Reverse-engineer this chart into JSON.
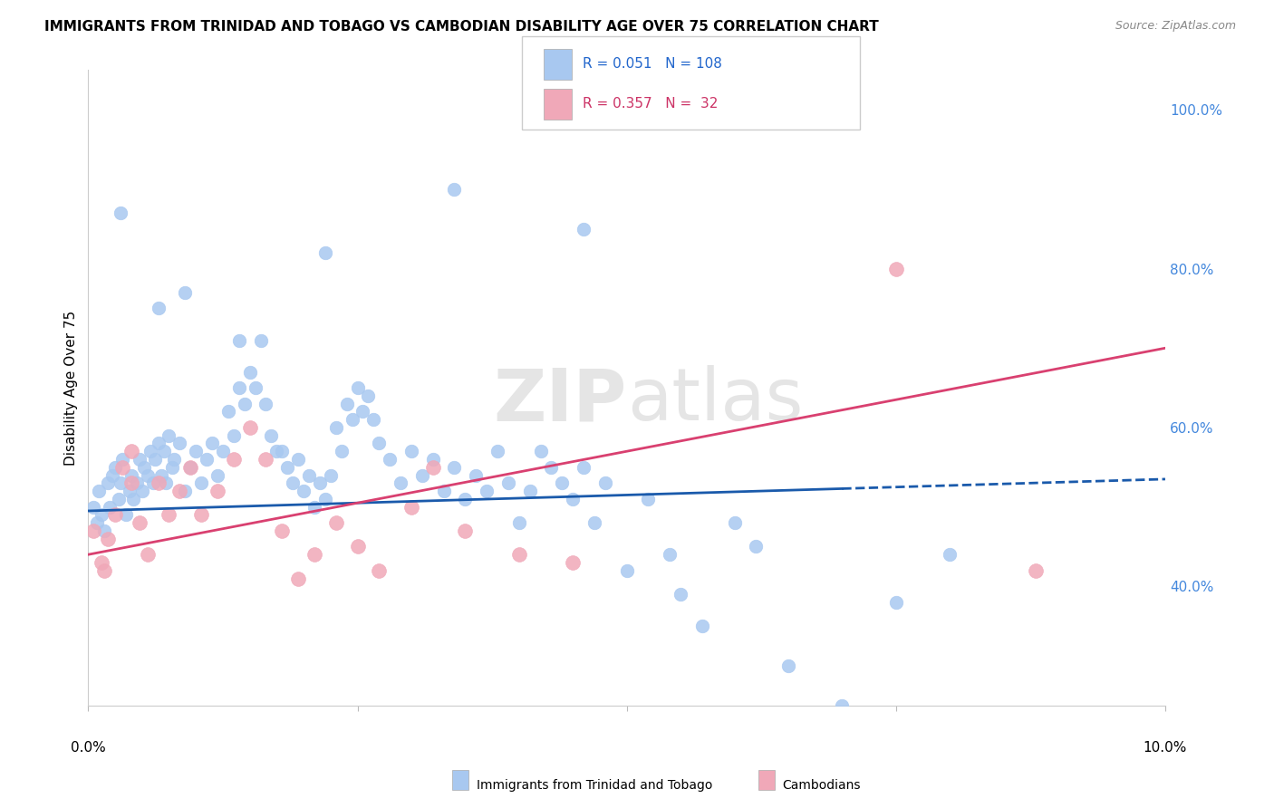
{
  "title": "IMMIGRANTS FROM TRINIDAD AND TOBAGO VS CAMBODIAN DISABILITY AGE OVER 75 CORRELATION CHART",
  "source": "Source: ZipAtlas.com",
  "ylabel": "Disability Age Over 75",
  "blue_R": "R = 0.051",
  "blue_N": "N = 108",
  "pink_R": "R = 0.357",
  "pink_N": "N =  32",
  "blue_color": "#a8c8f0",
  "pink_color": "#f0a8b8",
  "blue_line_color": "#1a5aab",
  "pink_line_color": "#d94070",
  "watermark_big": "ZIP",
  "watermark_small": "atlas",
  "xlim": [
    0.0,
    10.0
  ],
  "ylim": [
    25.0,
    105.0
  ],
  "blue_scatter_x": [
    0.05,
    0.08,
    0.1,
    0.12,
    0.15,
    0.18,
    0.2,
    0.22,
    0.25,
    0.28,
    0.3,
    0.32,
    0.35,
    0.38,
    0.4,
    0.42,
    0.45,
    0.48,
    0.5,
    0.52,
    0.55,
    0.58,
    0.6,
    0.62,
    0.65,
    0.68,
    0.7,
    0.72,
    0.75,
    0.78,
    0.8,
    0.85,
    0.9,
    0.95,
    1.0,
    1.05,
    1.1,
    1.15,
    1.2,
    1.25,
    1.3,
    1.35,
    1.4,
    1.45,
    1.5,
    1.55,
    1.6,
    1.65,
    1.7,
    1.75,
    1.8,
    1.85,
    1.9,
    1.95,
    2.0,
    2.05,
    2.1,
    2.15,
    2.2,
    2.25,
    2.3,
    2.35,
    2.4,
    2.45,
    2.5,
    2.55,
    2.6,
    2.65,
    2.7,
    2.8,
    2.9,
    3.0,
    3.1,
    3.2,
    3.3,
    3.4,
    3.5,
    3.6,
    3.7,
    3.8,
    3.9,
    4.0,
    4.1,
    4.2,
    4.3,
    4.4,
    4.5,
    4.6,
    4.7,
    4.8,
    5.0,
    5.2,
    5.4,
    5.5,
    5.7,
    6.0,
    6.2,
    6.5,
    7.0,
    7.5,
    8.0,
    3.4,
    4.6,
    2.2,
    0.3,
    0.65,
    0.9,
    1.4
  ],
  "blue_scatter_y": [
    50,
    48,
    52,
    49,
    47,
    53,
    50,
    54,
    55,
    51,
    53,
    56,
    49,
    52,
    54,
    51,
    53,
    56,
    52,
    55,
    54,
    57,
    53,
    56,
    58,
    54,
    57,
    53,
    59,
    55,
    56,
    58,
    52,
    55,
    57,
    53,
    56,
    58,
    54,
    57,
    62,
    59,
    65,
    63,
    67,
    65,
    71,
    63,
    59,
    57,
    57,
    55,
    53,
    56,
    52,
    54,
    50,
    53,
    51,
    54,
    60,
    57,
    63,
    61,
    65,
    62,
    64,
    61,
    58,
    56,
    53,
    57,
    54,
    56,
    52,
    55,
    51,
    54,
    52,
    57,
    53,
    48,
    52,
    57,
    55,
    53,
    51,
    55,
    48,
    53,
    42,
    51,
    44,
    39,
    35,
    48,
    45,
    30,
    25,
    38,
    44,
    90,
    85,
    82,
    87,
    75,
    77,
    71
  ],
  "pink_scatter_x": [
    0.05,
    0.12,
    0.18,
    0.25,
    0.32,
    0.4,
    0.48,
    0.55,
    0.65,
    0.75,
    0.85,
    0.95,
    1.05,
    1.2,
    1.35,
    1.5,
    1.65,
    1.8,
    1.95,
    2.1,
    2.3,
    2.5,
    2.7,
    3.0,
    3.2,
    3.5,
    4.0,
    4.5,
    0.15,
    0.4,
    8.8,
    7.5
  ],
  "pink_scatter_y": [
    47,
    43,
    46,
    49,
    55,
    53,
    48,
    44,
    53,
    49,
    52,
    55,
    49,
    52,
    56,
    60,
    56,
    47,
    41,
    44,
    48,
    45,
    42,
    50,
    55,
    47,
    44,
    43,
    42,
    57,
    42,
    80
  ],
  "blue_trend_x": [
    0.0,
    10.0
  ],
  "blue_trend_y": [
    49.5,
    53.5
  ],
  "blue_solid_end": 7.0,
  "pink_trend_x": [
    0.0,
    10.0
  ],
  "pink_trend_y": [
    44.0,
    70.0
  ],
  "background_color": "#ffffff",
  "grid_color": "#d8d8d8"
}
